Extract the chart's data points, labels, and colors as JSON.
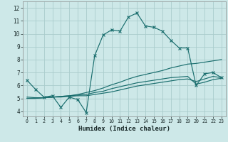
{
  "xlabel": "Humidex (Indice chaleur)",
  "xlim": [
    -0.5,
    23.5
  ],
  "ylim": [
    3.6,
    12.5
  ],
  "xticks": [
    0,
    1,
    2,
    3,
    4,
    5,
    6,
    7,
    8,
    9,
    10,
    11,
    12,
    13,
    14,
    15,
    16,
    17,
    18,
    19,
    20,
    21,
    22,
    23
  ],
  "yticks": [
    4,
    5,
    6,
    7,
    8,
    9,
    10,
    11,
    12
  ],
  "bg_color": "#cde8e8",
  "grid_color": "#aacccc",
  "line_color": "#1a6e6e",
  "line1_x": [
    0,
    1,
    2,
    3,
    4,
    5,
    6,
    7,
    8,
    9,
    10,
    11,
    12,
    13,
    14,
    15,
    16,
    17,
    18,
    19,
    20,
    21,
    22,
    23
  ],
  "line1_y": [
    6.4,
    5.7,
    5.1,
    5.2,
    4.3,
    5.1,
    4.9,
    3.9,
    8.3,
    9.9,
    10.3,
    10.2,
    11.3,
    11.6,
    10.6,
    10.5,
    10.2,
    9.5,
    8.9,
    8.9,
    6.0,
    6.9,
    7.0,
    6.6
  ],
  "line2_x": [
    0,
    1,
    2,
    3,
    4,
    5,
    6,
    7,
    8,
    9,
    10,
    11,
    12,
    13,
    14,
    15,
    16,
    17,
    18,
    19,
    20,
    21,
    22,
    23
  ],
  "line2_y": [
    5.0,
    5.0,
    5.05,
    5.1,
    5.15,
    5.2,
    5.3,
    5.45,
    5.6,
    5.8,
    6.05,
    6.25,
    6.5,
    6.7,
    6.85,
    7.0,
    7.15,
    7.35,
    7.5,
    7.65,
    7.7,
    7.8,
    7.9,
    8.0
  ],
  "line3_x": [
    0,
    1,
    2,
    3,
    4,
    5,
    6,
    7,
    8,
    9,
    10,
    11,
    12,
    13,
    14,
    15,
    16,
    17,
    18,
    19,
    20,
    21,
    22,
    23
  ],
  "line3_y": [
    5.0,
    5.0,
    5.05,
    5.1,
    5.1,
    5.15,
    5.2,
    5.2,
    5.3,
    5.4,
    5.5,
    5.65,
    5.8,
    5.95,
    6.05,
    6.15,
    6.25,
    6.35,
    6.45,
    6.5,
    6.3,
    6.5,
    6.7,
    6.6
  ],
  "line4_x": [
    0,
    1,
    2,
    3,
    4,
    5,
    6,
    7,
    8,
    9,
    10,
    11,
    12,
    13,
    14,
    15,
    16,
    17,
    18,
    19,
    20,
    21,
    22,
    23
  ],
  "line4_y": [
    5.1,
    5.05,
    5.05,
    5.1,
    5.15,
    5.2,
    5.25,
    5.3,
    5.45,
    5.55,
    5.75,
    5.9,
    6.05,
    6.2,
    6.3,
    6.4,
    6.5,
    6.6,
    6.65,
    6.7,
    6.1,
    6.25,
    6.45,
    6.55
  ]
}
